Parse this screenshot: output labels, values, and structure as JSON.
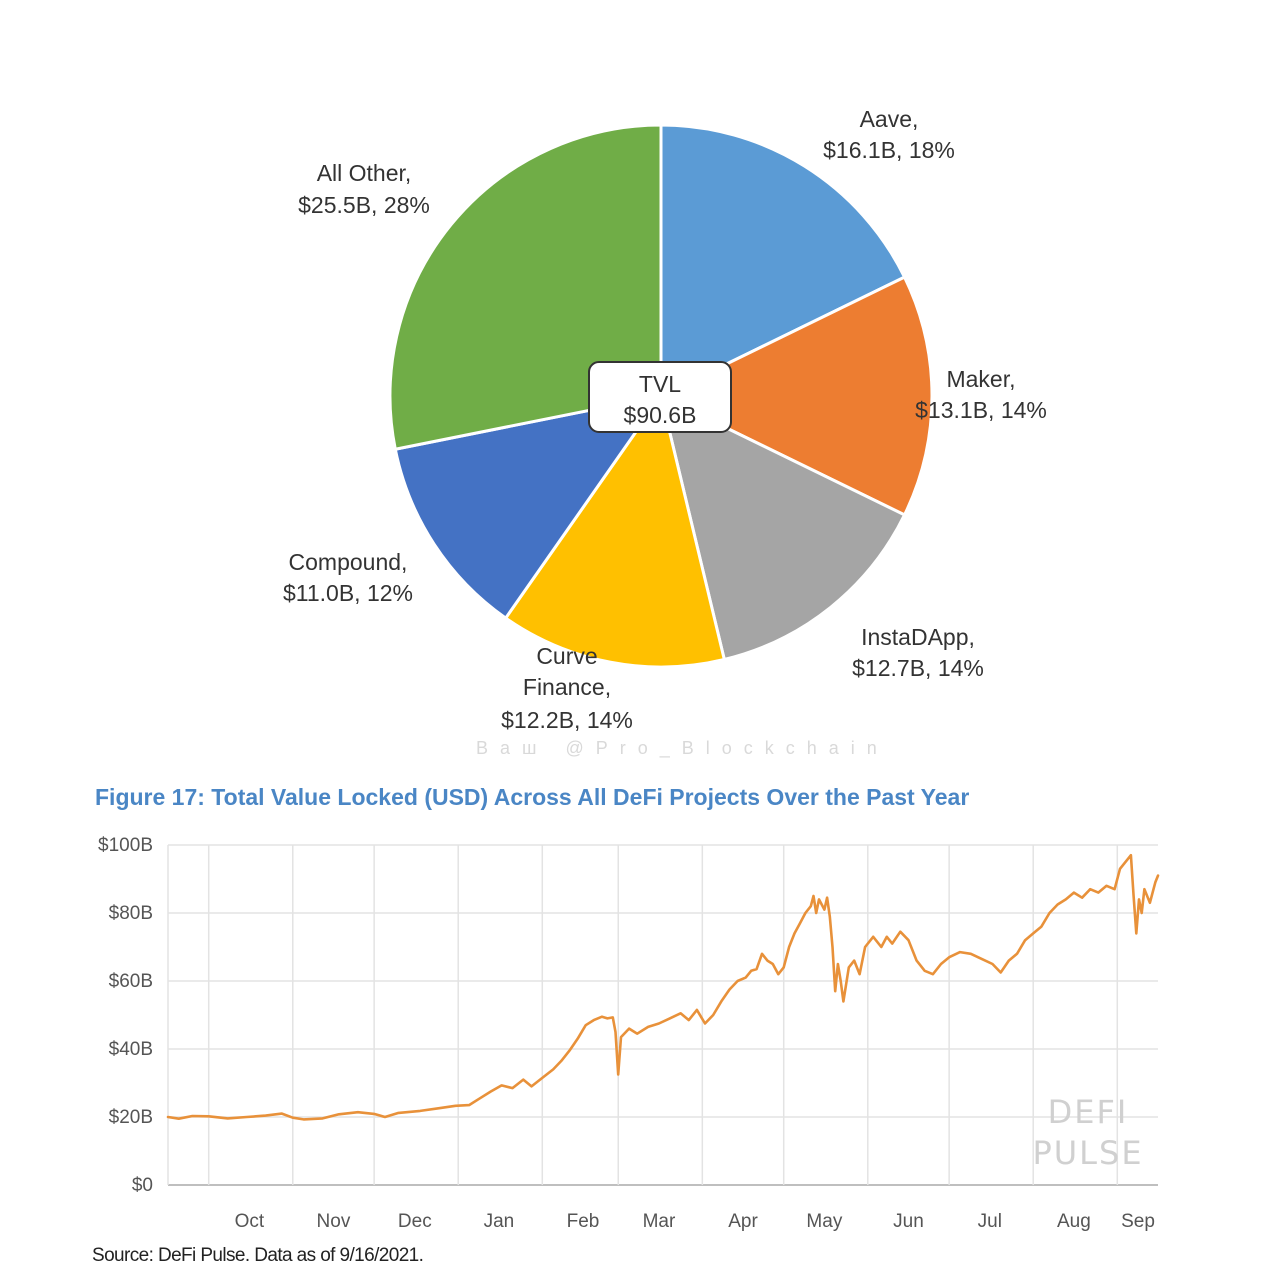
{
  "chart_data": [
    {
      "type": "pie",
      "center_label": {
        "line1": "TVL",
        "line2": "$90.6B"
      },
      "slices": [
        {
          "name": "Aave",
          "value": 16.1,
          "value_label": "$16.1B",
          "percent": 18,
          "percent_label": "18%",
          "color": "#5b9bd5"
        },
        {
          "name": "Maker",
          "value": 13.1,
          "value_label": "$13.1B",
          "percent": 14,
          "percent_label": "14%",
          "color": "#ed7d31"
        },
        {
          "name": "InstaDApp",
          "value": 12.7,
          "value_label": "$12.7B",
          "percent": 14,
          "percent_label": "14%",
          "color": "#a5a5a5"
        },
        {
          "name": "Curve Finance",
          "value": 12.2,
          "value_label": "$12.2B",
          "percent": 14,
          "percent_label": "14%",
          "color": "#ffc000"
        },
        {
          "name": "Compound",
          "value": 11.0,
          "value_label": "$11.0B",
          "percent": 12,
          "percent_label": "12%",
          "color": "#4472c4"
        },
        {
          "name": "All Other",
          "value": 25.5,
          "value_label": "$25.5B",
          "percent": 28,
          "percent_label": "28%",
          "color": "#70ad47"
        }
      ],
      "labels": {
        "aave": [
          "Aave,",
          "$16.1B, 18%"
        ],
        "maker": [
          "Maker,",
          "$13.1B, 14%"
        ],
        "instadapp": [
          "InstaDApp,",
          "$12.7B, 14%"
        ],
        "curve": [
          "Curve",
          "Finance,",
          "$12.2B, 14%"
        ],
        "compound": [
          "Compound,",
          "$11.0B, 12%"
        ],
        "other": [
          "All Other,",
          "$25.5B, 28%"
        ]
      }
    },
    {
      "type": "line",
      "title": "Figure 17: Total Value Locked (USD) Across All DeFi Projects Over the Past Year",
      "xlabel": "",
      "ylabel": "",
      "y_unit": "USD billions",
      "ylim": [
        0,
        100
      ],
      "y_ticks": [
        0,
        20,
        40,
        60,
        80,
        100
      ],
      "y_tick_labels": [
        "$0",
        "$20B",
        "$40B",
        "$60B",
        "$80B",
        "$100B"
      ],
      "x_range": [
        "2020-09-16",
        "2021-09-16"
      ],
      "x_ticks": [
        "2020-10-01",
        "2020-11-01",
        "2020-12-01",
        "2021-01-01",
        "2021-02-01",
        "2021-03-01",
        "2021-04-01",
        "2021-05-01",
        "2021-06-01",
        "2021-07-01",
        "2021-08-01",
        "2021-09-01"
      ],
      "x_tick_labels": [
        "Oct",
        "Nov",
        "Dec",
        "Jan",
        "Feb",
        "Mar",
        "Apr",
        "May",
        "Jun",
        "Jul",
        "Aug",
        "Sep"
      ],
      "grid": true,
      "line_color": "#e8913a",
      "series": [
        {
          "name": "",
          "points": [
            [
              "2020-09-16",
              20.0
            ],
            [
              "2020-09-20",
              19.5
            ],
            [
              "2020-09-25",
              20.3
            ],
            [
              "2020-10-01",
              20.2
            ],
            [
              "2020-10-08",
              19.6
            ],
            [
              "2020-10-15",
              20.0
            ],
            [
              "2020-10-22",
              20.4
            ],
            [
              "2020-10-28",
              21.0
            ],
            [
              "2020-11-01",
              19.8
            ],
            [
              "2020-11-05",
              19.3
            ],
            [
              "2020-11-12",
              19.6
            ],
            [
              "2020-11-18",
              20.8
            ],
            [
              "2020-11-25",
              21.4
            ],
            [
              "2020-12-01",
              20.9
            ],
            [
              "2020-12-05",
              20.0
            ],
            [
              "2020-12-10",
              21.2
            ],
            [
              "2020-12-18",
              21.8
            ],
            [
              "2020-12-25",
              22.6
            ],
            [
              "2020-12-31",
              23.3
            ],
            [
              "2021-01-05",
              23.5
            ],
            [
              "2021-01-09",
              25.5
            ],
            [
              "2021-01-13",
              27.5
            ],
            [
              "2021-01-17",
              29.3
            ],
            [
              "2021-01-21",
              28.5
            ],
            [
              "2021-01-25",
              31.0
            ],
            [
              "2021-01-28",
              29.0
            ],
            [
              "2021-02-01",
              31.5
            ],
            [
              "2021-02-05",
              34.0
            ],
            [
              "2021-02-08",
              36.5
            ],
            [
              "2021-02-11",
              39.5
            ],
            [
              "2021-02-14",
              43.0
            ],
            [
              "2021-02-17",
              47.0
            ],
            [
              "2021-02-20",
              48.5
            ],
            [
              "2021-02-23",
              49.5
            ],
            [
              "2021-02-25",
              49.0
            ],
            [
              "2021-02-27",
              49.3
            ],
            [
              "2021-02-28",
              45.0
            ],
            [
              "2021-03-01",
              32.5
            ],
            [
              "2021-03-02",
              43.5
            ],
            [
              "2021-03-05",
              46.0
            ],
            [
              "2021-03-08",
              44.5
            ],
            [
              "2021-03-12",
              46.5
            ],
            [
              "2021-03-16",
              47.5
            ],
            [
              "2021-03-20",
              49.0
            ],
            [
              "2021-03-24",
              50.5
            ],
            [
              "2021-03-27",
              48.5
            ],
            [
              "2021-03-30",
              51.5
            ],
            [
              "2021-04-02",
              47.5
            ],
            [
              "2021-04-05",
              50.0
            ],
            [
              "2021-04-08",
              54.0
            ],
            [
              "2021-04-11",
              57.5
            ],
            [
              "2021-04-14",
              60.0
            ],
            [
              "2021-04-17",
              61.0
            ],
            [
              "2021-04-19",
              63.0
            ],
            [
              "2021-04-21",
              63.5
            ],
            [
              "2021-04-23",
              68.0
            ],
            [
              "2021-04-25",
              66.0
            ],
            [
              "2021-04-27",
              65.0
            ],
            [
              "2021-04-29",
              62.0
            ],
            [
              "2021-05-01",
              64.0
            ],
            [
              "2021-05-03",
              70.0
            ],
            [
              "2021-05-05",
              74.0
            ],
            [
              "2021-05-07",
              77.0
            ],
            [
              "2021-05-09",
              80.0
            ],
            [
              "2021-05-11",
              82.0
            ],
            [
              "2021-05-12",
              85.0
            ],
            [
              "2021-05-13",
              80.0
            ],
            [
              "2021-05-14",
              84.0
            ],
            [
              "2021-05-16",
              81.0
            ],
            [
              "2021-05-17",
              84.5
            ],
            [
              "2021-05-18",
              79.0
            ],
            [
              "2021-05-19",
              70.0
            ],
            [
              "2021-05-20",
              57.0
            ],
            [
              "2021-05-21",
              65.0
            ],
            [
              "2021-05-22",
              60.0
            ],
            [
              "2021-05-23",
              54.0
            ],
            [
              "2021-05-25",
              64.0
            ],
            [
              "2021-05-27",
              66.0
            ],
            [
              "2021-05-29",
              62.0
            ],
            [
              "2021-05-31",
              70.0
            ],
            [
              "2021-06-03",
              73.0
            ],
            [
              "2021-06-06",
              70.0
            ],
            [
              "2021-06-08",
              73.0
            ],
            [
              "2021-06-10",
              71.0
            ],
            [
              "2021-06-13",
              74.5
            ],
            [
              "2021-06-16",
              72.0
            ],
            [
              "2021-06-19",
              66.0
            ],
            [
              "2021-06-22",
              63.0
            ],
            [
              "2021-06-25",
              62.0
            ],
            [
              "2021-06-28",
              65.0
            ],
            [
              "2021-07-01",
              67.0
            ],
            [
              "2021-07-05",
              68.5
            ],
            [
              "2021-07-09",
              68.0
            ],
            [
              "2021-07-13",
              66.5
            ],
            [
              "2021-07-17",
              65.0
            ],
            [
              "2021-07-20",
              62.5
            ],
            [
              "2021-07-23",
              66.0
            ],
            [
              "2021-07-26",
              68.0
            ],
            [
              "2021-07-29",
              72.0
            ],
            [
              "2021-08-01",
              74.0
            ],
            [
              "2021-08-04",
              76.0
            ],
            [
              "2021-08-07",
              80.0
            ],
            [
              "2021-08-10",
              82.5
            ],
            [
              "2021-08-13",
              84.0
            ],
            [
              "2021-08-16",
              86.0
            ],
            [
              "2021-08-19",
              84.5
            ],
            [
              "2021-08-22",
              87.0
            ],
            [
              "2021-08-25",
              86.0
            ],
            [
              "2021-08-28",
              88.0
            ],
            [
              "2021-08-31",
              87.0
            ],
            [
              "2021-09-02",
              93.0
            ],
            [
              "2021-09-05",
              96.0
            ],
            [
              "2021-09-06",
              97.0
            ],
            [
              "2021-09-07",
              85.0
            ],
            [
              "2021-09-08",
              74.0
            ],
            [
              "2021-09-09",
              84.0
            ],
            [
              "2021-09-10",
              80.0
            ],
            [
              "2021-09-11",
              87.0
            ],
            [
              "2021-09-13",
              83.0
            ],
            [
              "2021-09-15",
              89.0
            ],
            [
              "2021-09-16",
              91.0
            ]
          ]
        }
      ]
    }
  ],
  "watermark": "Baш @Pro_Blockchain",
  "logo": {
    "line1": "DEFI",
    "line2": "PULSE"
  },
  "source": "Source: DeFi Pulse. Data as of 9/16/2021."
}
